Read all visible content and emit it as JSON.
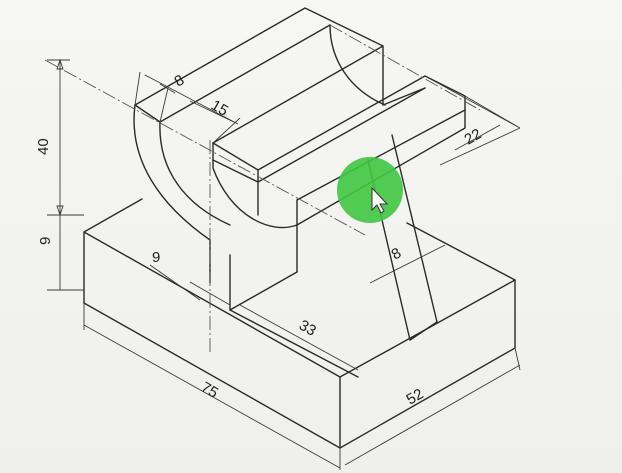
{
  "colors": {
    "line": "#2a2a2a",
    "cursor_highlight": "#3fc63f",
    "background": "#f4f4f2"
  },
  "dimensions": {
    "d8_top": "8",
    "d15": "15",
    "d40": "40",
    "d22": "22",
    "d9_left": "9",
    "d9_inner": "9",
    "d8_rib": "8",
    "d33": "33",
    "d75": "75",
    "d52": "52"
  },
  "cursor": {
    "icon": "mouse-pointer-icon"
  }
}
